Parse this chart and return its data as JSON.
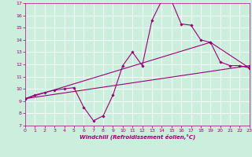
{
  "title": "",
  "xlabel": "Windchill (Refroidissement éolien,°C)",
  "bg_color": "#cceedd",
  "line_color": "#990077",
  "grid_color": "#ffffff",
  "xmin": 0,
  "xmax": 23,
  "ymin": 7,
  "ymax": 17,
  "line1_x": [
    0,
    1,
    2,
    3,
    4,
    5,
    6,
    7,
    8,
    9,
    10,
    11,
    12,
    13,
    14,
    15,
    16,
    17,
    18,
    19,
    20,
    21,
    22,
    23
  ],
  "line1_y": [
    9.2,
    9.5,
    9.7,
    9.9,
    10.0,
    10.1,
    8.5,
    7.4,
    7.8,
    9.5,
    11.9,
    13.0,
    11.9,
    15.6,
    17.2,
    17.2,
    15.3,
    15.2,
    14.0,
    13.8,
    12.2,
    11.9,
    11.9,
    11.7
  ],
  "line2_x": [
    0,
    23
  ],
  "line2_y": [
    9.2,
    11.9
  ],
  "line3_x": [
    0,
    19,
    23
  ],
  "line3_y": [
    9.2,
    13.8,
    11.7
  ],
  "ytick_vals": [
    7,
    8,
    9,
    10,
    11,
    12,
    13,
    14,
    15,
    16,
    17
  ],
  "xtick_vals": [
    0,
    1,
    2,
    3,
    4,
    5,
    6,
    7,
    8,
    9,
    10,
    11,
    12,
    13,
    14,
    15,
    16,
    17,
    18,
    19,
    20,
    21,
    22,
    23
  ],
  "tick_fontsize": 4.5,
  "xlabel_fontsize": 5.0,
  "linewidth": 0.8,
  "markersize": 1.8
}
